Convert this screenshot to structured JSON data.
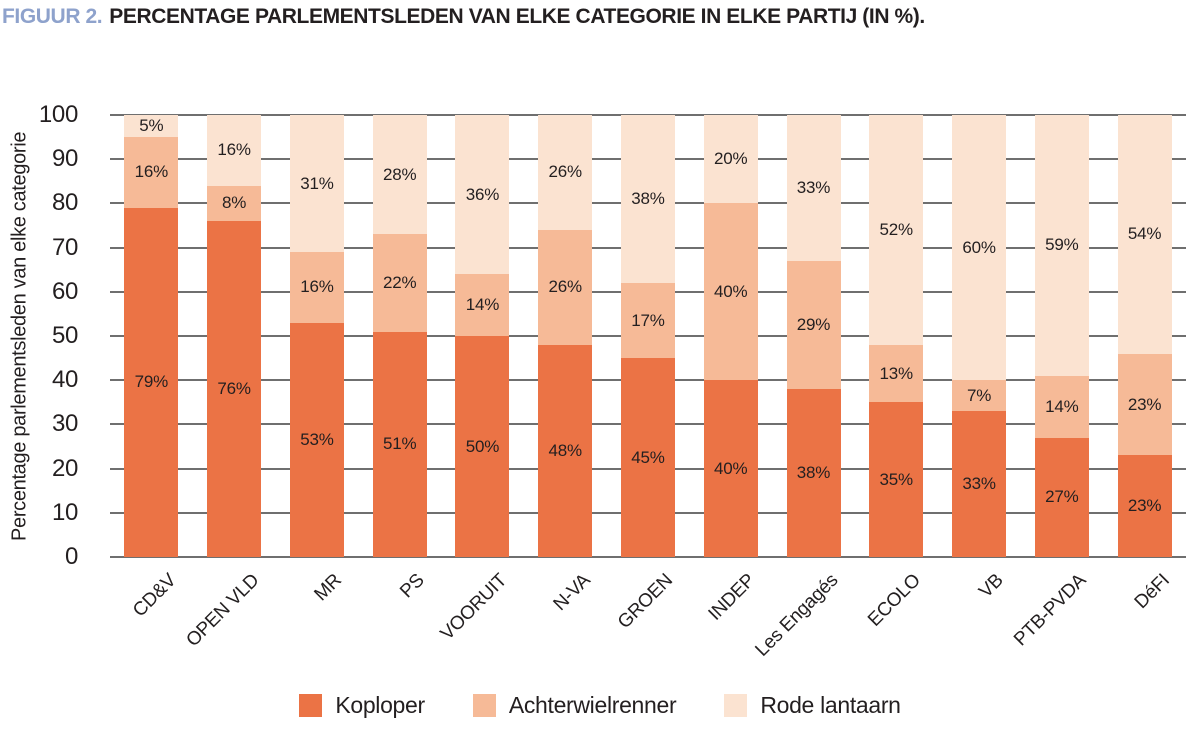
{
  "figure": {
    "title_prefix": "FIGUUR 2.",
    "title_text": "PERCENTAGE PARLEMENTSLEDEN VAN ELKE CATEGORIE IN ELKE PARTIJ (IN %)."
  },
  "chart_data": {
    "type": "bar",
    "stacked": true,
    "title": "FIGUUR 2. PERCENTAGE PARLEMENTSLEDEN VAN ELKE CATEGORIE IN ELKE PARTIJ (IN %).",
    "ylabel": "Percentage parlementsleden van elke categorie",
    "xlabel": "",
    "ylim": [
      0,
      100
    ],
    "yticks": [
      0,
      10,
      20,
      30,
      40,
      50,
      60,
      70,
      80,
      90,
      100
    ],
    "grid": true,
    "legend_position": "bottom",
    "value_suffix": "%",
    "categories": [
      "CD&V",
      "OPEN VLD",
      "MR",
      "PS",
      "VOORUIT",
      "N-VA",
      "GROEN",
      "INDEP",
      "Les Engagés",
      "ECOLO",
      "VB",
      "PTB-PVDA",
      "DéFI"
    ],
    "series": [
      {
        "name": "Koploper",
        "color": "#EB7345",
        "values": [
          79,
          76,
          53,
          51,
          50,
          48,
          45,
          40,
          38,
          35,
          33,
          27,
          23
        ]
      },
      {
        "name": "Achterwielrenner",
        "color": "#F6BA97",
        "values": [
          16,
          8,
          16,
          22,
          14,
          26,
          17,
          40,
          29,
          13,
          7,
          14,
          23
        ]
      },
      {
        "name": "Rode lantaarn",
        "color": "#FBE3D1",
        "values": [
          5,
          16,
          31,
          28,
          36,
          26,
          38,
          20,
          33,
          52,
          60,
          59,
          54
        ]
      }
    ],
    "colors": {
      "grid": "#6F6F6F",
      "text": "#231F20",
      "title_prefix": "#8EA2CC"
    }
  }
}
